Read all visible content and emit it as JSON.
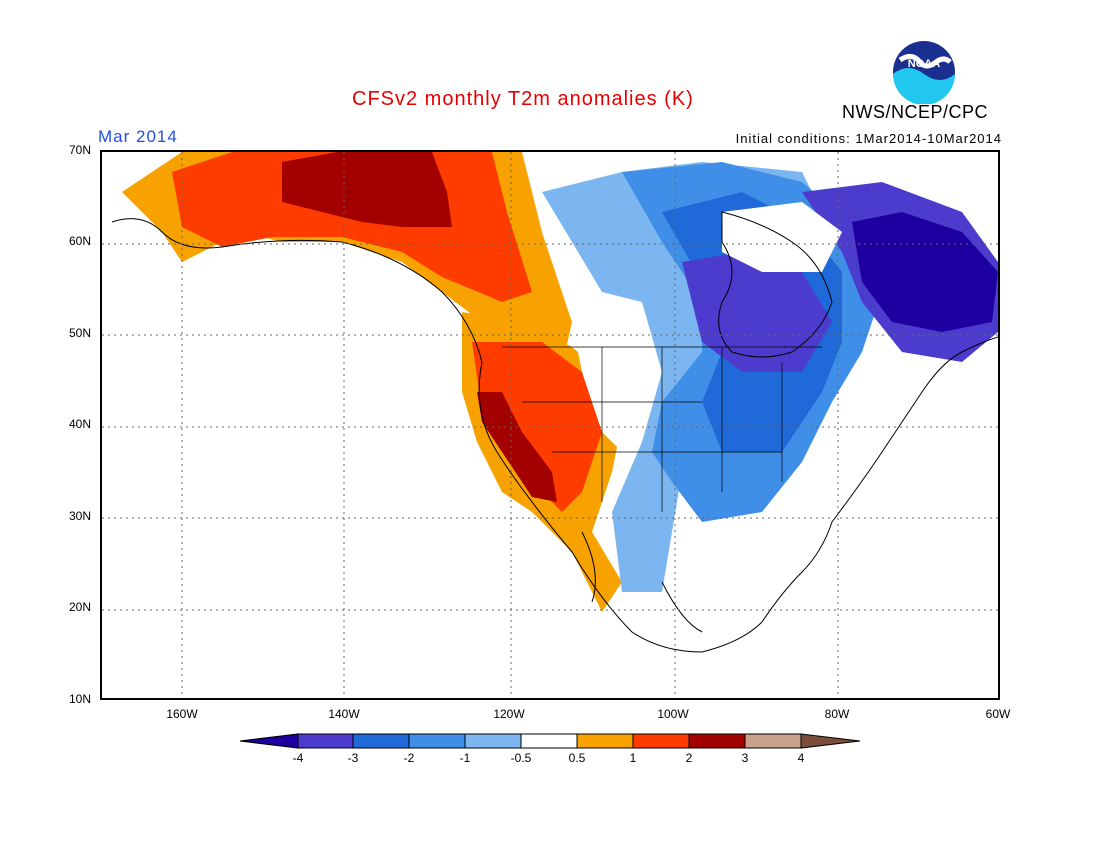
{
  "header": {
    "title": "CFSv2 monthly T2m anomalies (K)",
    "month": "Mar 2014",
    "initial_conditions": "Initial conditions: 1Mar2014-10Mar2014",
    "agency": "NWS/NCEP/CPC",
    "logo_text": "NOAA"
  },
  "map": {
    "lat_labels": [
      "70N",
      "60N",
      "50N",
      "40N",
      "30N",
      "20N",
      "10N"
    ],
    "lon_labels": [
      "160W",
      "140W",
      "120W",
      "100W",
      "80W",
      "60W"
    ],
    "colors": {
      "lt_-4": "#1e00a0",
      "-4_-3": "#4b3ccd",
      "-3_-2": "#1f6ad8",
      "-2_-1": "#3f8ee8",
      "-1_-0.5": "#7cb6f0",
      "-0.5_0.5": "#ffffff",
      "0.5_1": "#f7a200",
      "1_2": "#ff3c00",
      "2_3": "#a30000",
      "3_4": "#c8a08c",
      "gt_4": "#7a4c3a"
    }
  },
  "colorbar": {
    "labels": [
      "-4",
      "-3",
      "-2",
      "-1",
      "-0.5",
      "0.5",
      "1",
      "2",
      "3",
      "4"
    ],
    "colors": [
      "#1e00a0",
      "#4b3ccd",
      "#1f6ad8",
      "#3f8ee8",
      "#7cb6f0",
      "#ffffff",
      "#f7a200",
      "#ff3c00",
      "#a30000",
      "#c8a08c",
      "#7a4c3a"
    ]
  }
}
